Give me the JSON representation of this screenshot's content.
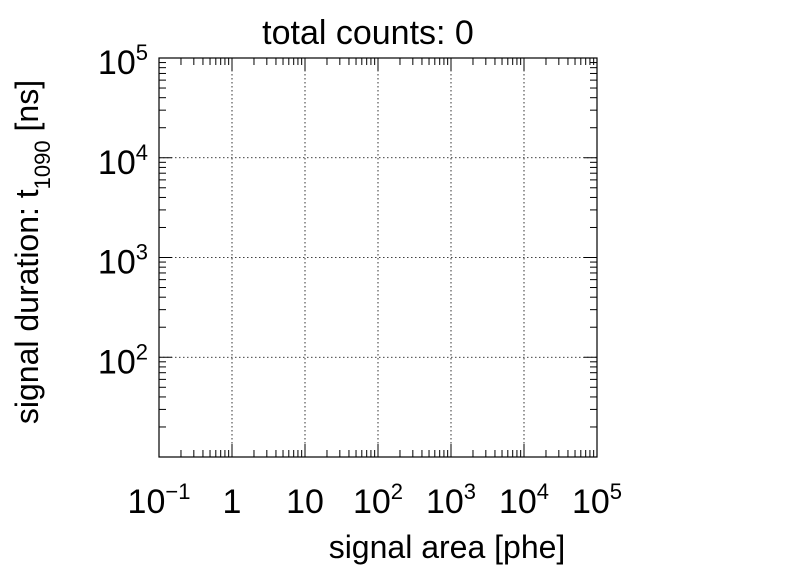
{
  "chart_data": {
    "type": "scatter",
    "title": "total counts: 0",
    "xlabel": "signal area [phe]",
    "ylabel": {
      "prefix": "signal duration: t",
      "subscript": "1090",
      "suffix": " [ns]"
    },
    "xscale": "log",
    "yscale": "log",
    "xlim": [
      0.1,
      100000
    ],
    "ylim": [
      10,
      100000
    ],
    "grid": true,
    "x_ticks": [
      {
        "value": 0.1,
        "base": "10",
        "exp": "−1"
      },
      {
        "value": 1,
        "base": "1",
        "exp": ""
      },
      {
        "value": 10,
        "base": "10",
        "exp": ""
      },
      {
        "value": 100,
        "base": "10",
        "exp": "2"
      },
      {
        "value": 1000,
        "base": "10",
        "exp": "3"
      },
      {
        "value": 10000,
        "base": "10",
        "exp": "4"
      },
      {
        "value": 100000,
        "base": "10",
        "exp": "5"
      }
    ],
    "y_ticks": [
      {
        "value": 100,
        "base": "10",
        "exp": "2"
      },
      {
        "value": 1000,
        "base": "10",
        "exp": "3"
      },
      {
        "value": 10000,
        "base": "10",
        "exp": "4"
      },
      {
        "value": 100000,
        "base": "10",
        "exp": "5"
      }
    ],
    "series": [
      {
        "points": []
      }
    ]
  }
}
